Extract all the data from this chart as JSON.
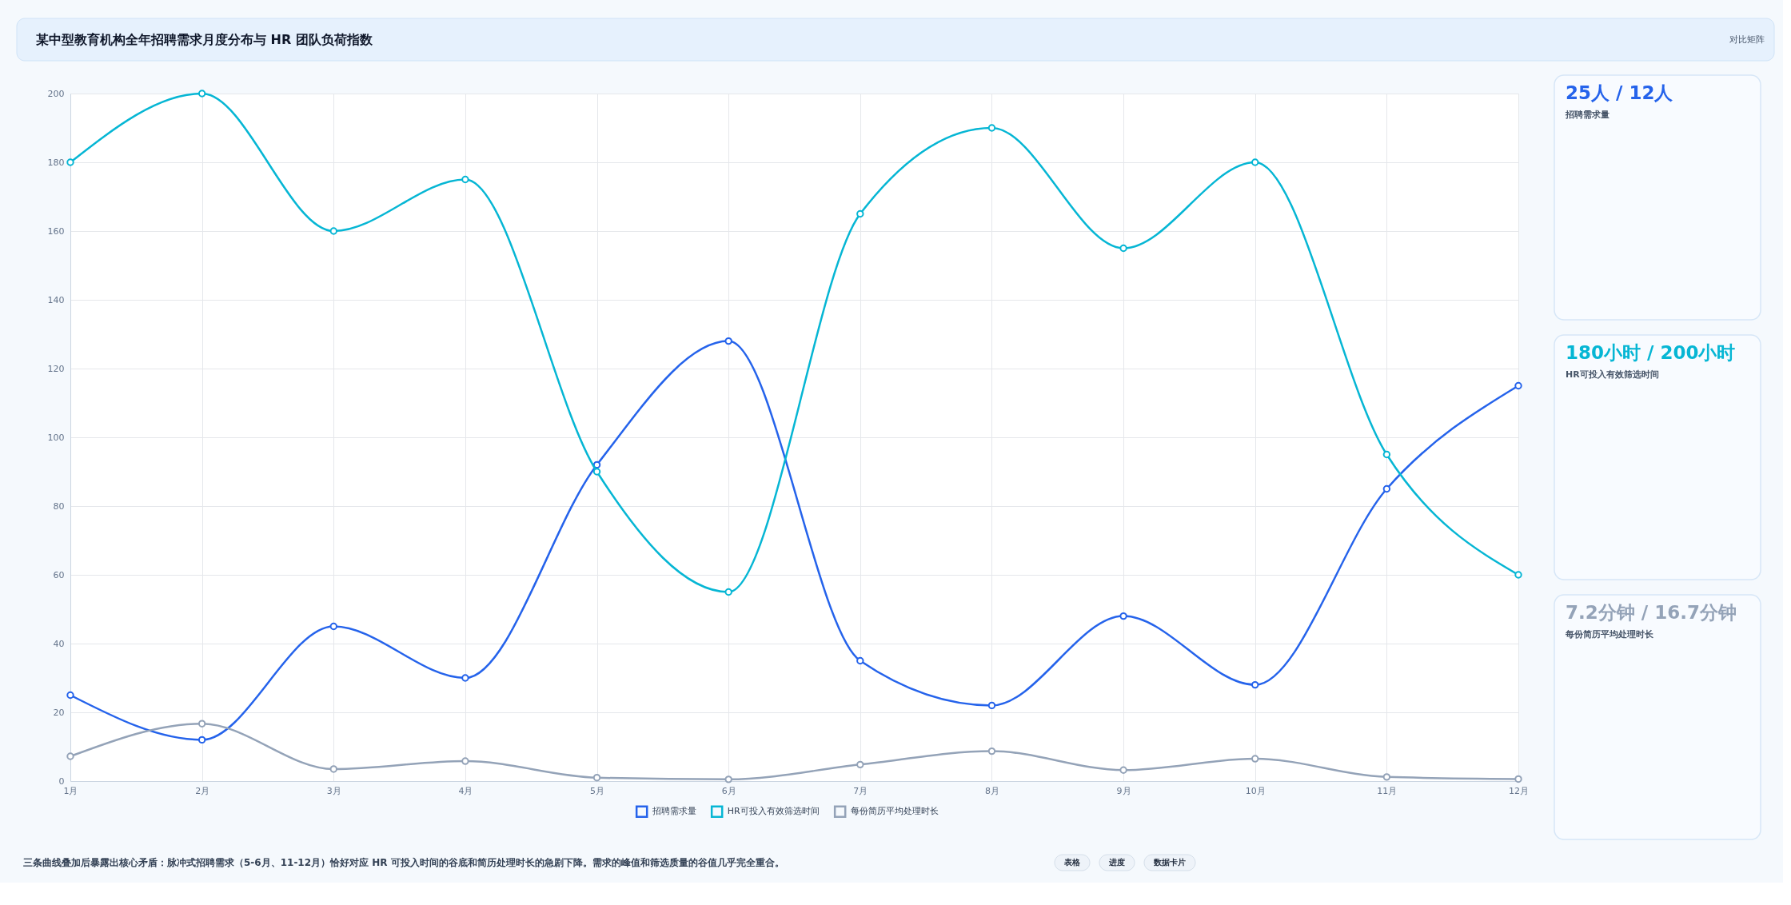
{
  "chart_data": [
    {
      "type": "line",
      "title": "某中型教育机构全年招聘需求月度分布与 HR 团队负荷指数",
      "categories": [
        "1月",
        "2月",
        "3月",
        "4月",
        "5月",
        "6月",
        "7月",
        "8月",
        "9月",
        "10月",
        "11月",
        "12月"
      ],
      "series": [
        {
          "name": "招聘需求量",
          "color": "#2563eb",
          "values": [
            25,
            12,
            45,
            30,
            92,
            128,
            35,
            22,
            48,
            28,
            85,
            115
          ]
        },
        {
          "name": "HR可投入有效筛选时间",
          "color": "#06b6d4",
          "values": [
            180,
            200,
            160,
            175,
            90,
            55,
            165,
            190,
            155,
            180,
            95,
            60
          ]
        },
        {
          "name": "每份简历平均处理时长",
          "color": "#94a3b8",
          "values": [
            7.2,
            16.7,
            3.5,
            5.8,
            1.0,
            0.5,
            4.8,
            8.7,
            3.2,
            6.5,
            1.2,
            0.6
          ]
        }
      ],
      "ylim": [
        0,
        200
      ],
      "yticks": [
        0,
        20,
        40,
        60,
        80,
        100,
        120,
        140,
        160,
        180,
        200
      ],
      "grid": true,
      "legend": "bottom",
      "marker": "circle",
      "line_style": "solid",
      "annotations": [
        "对比矩阵",
        "三条曲线叠加后暴露出核心矛盾：脉冲式招聘需求（5-6月、11-12月）恰好对应 HR 可投入时间的谷底和简历处理时长的急剧下降。需求的峰值和筛选质量的谷值几乎完全重合。",
        "表格",
        "进度",
        "数据卡片"
      ]
    },
    {
      "type": "other",
      "title": "25人 / 12人",
      "subtitle": "招聘需求量",
      "color": "#2563eb"
    },
    {
      "type": "other",
      "title": "180小时 / 200小时",
      "subtitle": "HR可投入有效筛选时间",
      "color": "#06b6d4"
    },
    {
      "type": "other",
      "title": "7.2分钟 / 16.7分钟",
      "subtitle": "每份简历平均处理时长",
      "color": "#94a3b8"
    }
  ]
}
